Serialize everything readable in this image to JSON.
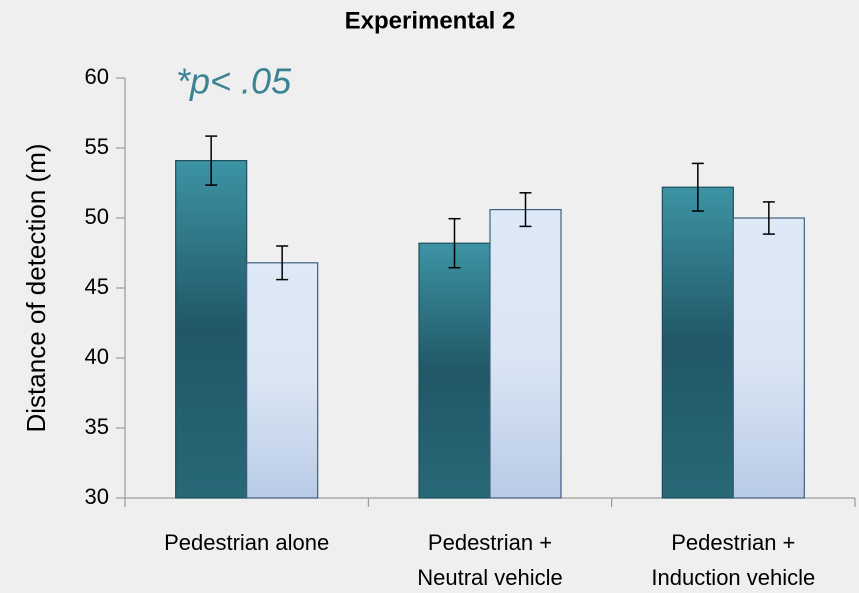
{
  "chart_data": {
    "type": "bar",
    "title": "Experimental 2",
    "y_label": "Distance of detection (m)",
    "annotation": "*p< .05",
    "annotation_color": "#3b8294",
    "categories": [
      [
        "Pedestrian alone"
      ],
      [
        "Pedestrian +",
        "Neutral vehicle"
      ],
      [
        "Pedestrian +",
        "Induction vehicle"
      ]
    ],
    "series": [
      {
        "color": "#225a68",
        "gradient": [
          "#3c93a4",
          "#215766",
          "#286877"
        ],
        "edge": "#1e4f5c",
        "values": [
          54.1,
          48.2,
          52.2
        ],
        "errors": [
          1.75,
          1.75,
          1.7
        ]
      },
      {
        "color": "#d2e0f2",
        "gradient": [
          "#dde9f6",
          "#dbe6f4",
          "#b8cbe6"
        ],
        "edge": "#3f5f80",
        "values": [
          46.8,
          50.6,
          50.0
        ],
        "errors": [
          1.2,
          1.2,
          1.15
        ]
      }
    ],
    "ylim": [
      30,
      60
    ],
    "yticks": [
      30,
      35,
      40,
      45,
      50,
      55,
      60
    ]
  }
}
